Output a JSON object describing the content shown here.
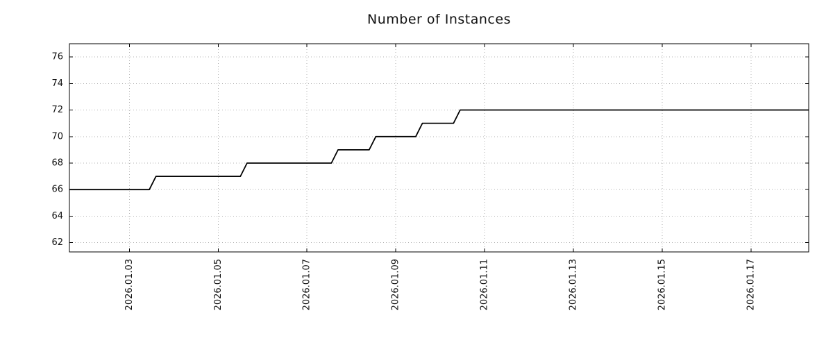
{
  "chart_data": {
    "type": "line",
    "title": "Number of Instances",
    "xlabel": "",
    "ylabel": "",
    "grid": true,
    "legend": false,
    "line_color": "#000000",
    "grid_color": "#b0b0b0",
    "xlim": [
      1.65,
      18.3
    ],
    "ylim": [
      61.3,
      77.0
    ],
    "x_unit": "day of 2026.01 (fractional)",
    "x_ticks": [
      3,
      5,
      7,
      9,
      11,
      13,
      15,
      17
    ],
    "x_tick_labels": [
      "2026.01.03",
      "2026.01.05",
      "2026.01.07",
      "2026.01.09",
      "2026.01.11",
      "2026.01.13",
      "2026.01.15",
      "2026.01.17"
    ],
    "y_ticks": [
      62,
      64,
      66,
      68,
      70,
      72,
      74,
      76
    ],
    "y_tick_labels": [
      "62",
      "64",
      "66",
      "68",
      "70",
      "72",
      "74",
      "76"
    ],
    "series": [
      {
        "name": "instances",
        "points": [
          [
            1.65,
            66
          ],
          [
            3.45,
            66
          ],
          [
            3.6,
            67
          ],
          [
            5.5,
            67
          ],
          [
            5.65,
            68
          ],
          [
            7.55,
            68
          ],
          [
            7.7,
            69
          ],
          [
            8.4,
            69
          ],
          [
            8.55,
            70
          ],
          [
            9.45,
            70
          ],
          [
            9.6,
            71
          ],
          [
            10.3,
            71
          ],
          [
            10.45,
            72
          ],
          [
            18.3,
            72
          ]
        ]
      }
    ]
  }
}
